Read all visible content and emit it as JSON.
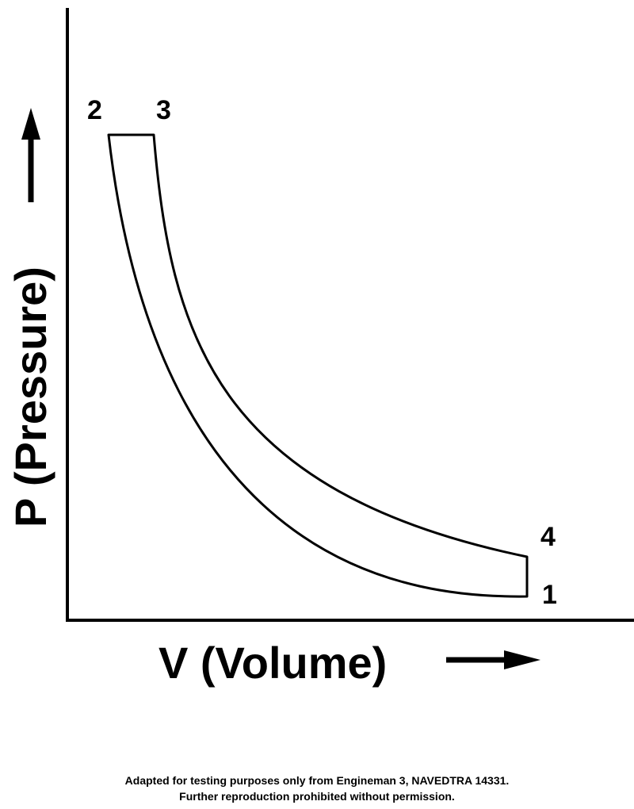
{
  "diagram": {
    "y_axis_label": "P (Pressure)",
    "x_axis_label": "V (Volume)",
    "points": {
      "p1": "1",
      "p2": "2",
      "p3": "3",
      "p4": "4"
    }
  },
  "footer": {
    "line1": "Adapted for testing purposes only from Engineman 3, NAVEDTRA 14331.",
    "line2": "Further reproduction prohibited without permission."
  }
}
